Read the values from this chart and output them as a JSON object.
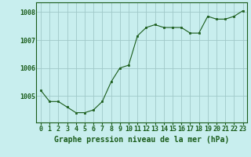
{
  "x": [
    0,
    1,
    2,
    3,
    4,
    5,
    6,
    7,
    8,
    9,
    10,
    11,
    12,
    13,
    14,
    15,
    16,
    17,
    18,
    19,
    20,
    21,
    22,
    23
  ],
  "y": [
    1005.2,
    1004.8,
    1004.8,
    1004.6,
    1004.4,
    1004.4,
    1004.5,
    1004.8,
    1005.5,
    1006.0,
    1006.1,
    1007.15,
    1007.45,
    1007.55,
    1007.45,
    1007.45,
    1007.45,
    1007.25,
    1007.25,
    1007.85,
    1007.75,
    1007.75,
    1007.85,
    1008.05
  ],
  "line_color": "#1a5c1a",
  "marker_color": "#1a5c1a",
  "bg_color": "#c8eeee",
  "grid_color": "#a0c8c8",
  "xlabel": "Graphe pression niveau de la mer (hPa)",
  "xlabel_color": "#1a5c1a",
  "ylabel_ticks": [
    1005,
    1006,
    1007,
    1008
  ],
  "ylim": [
    1004.05,
    1008.35
  ],
  "xlim": [
    -0.5,
    23.5
  ],
  "tick_color": "#1a5c1a",
  "spine_color": "#1a5c1a",
  "xlabel_fontsize": 7,
  "tick_fontsize": 6
}
